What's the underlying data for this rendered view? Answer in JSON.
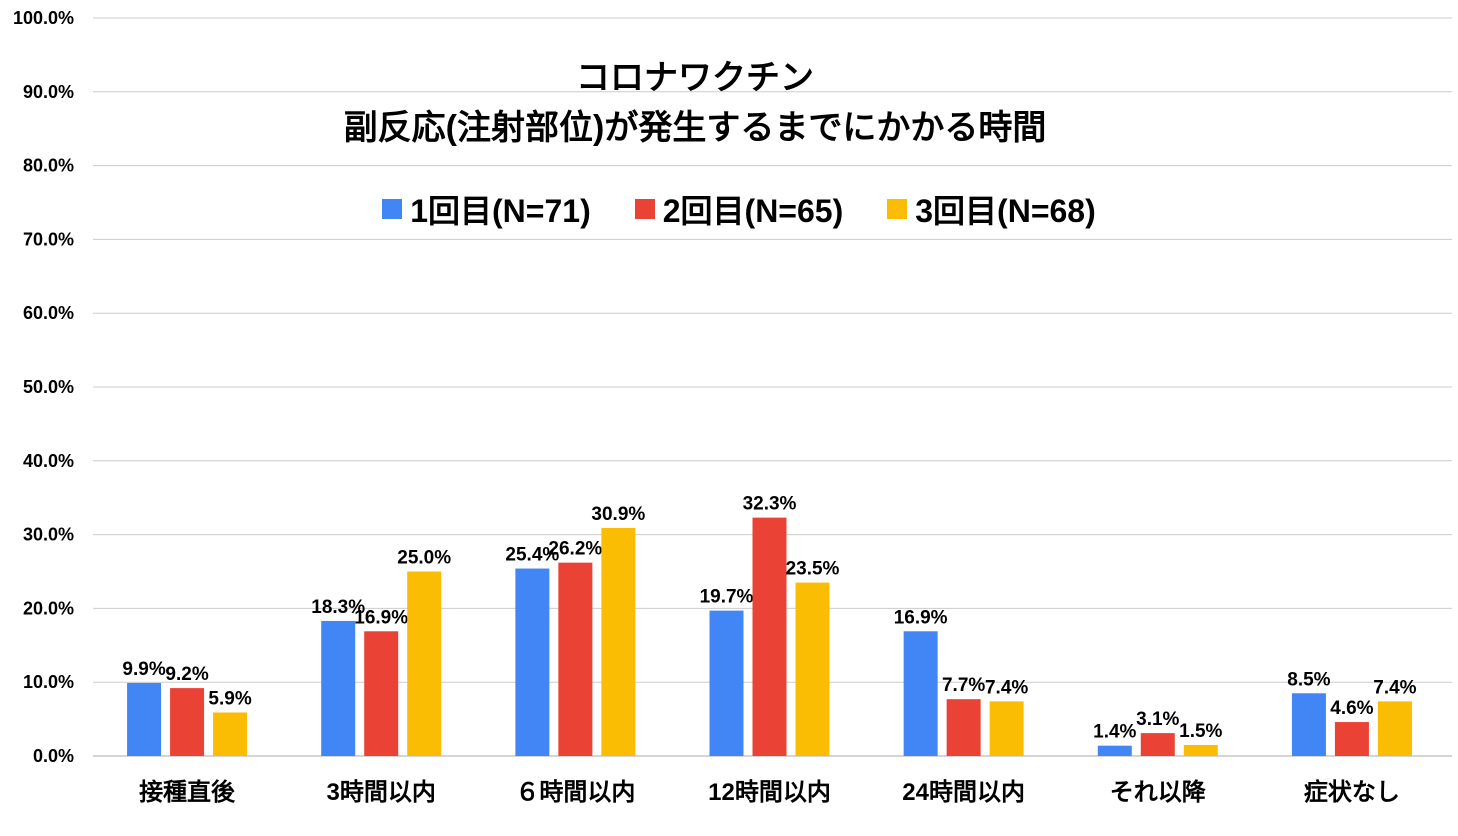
{
  "chart_data": {
    "type": "bar",
    "title": "コロナワクチン",
    "subtitle": "副反応(注射部位)が発生するまでにかかる時間",
    "categories": [
      "接種直後",
      "3時間以内",
      "６時間以内",
      "12時間以内",
      "24時間以内",
      "それ以降",
      "症状なし"
    ],
    "series": [
      {
        "name": "1回目(N=71)",
        "color": "#4285f4",
        "values": [
          9.9,
          18.3,
          25.4,
          19.7,
          16.9,
          1.4,
          8.5
        ],
        "labels": [
          "9.9%",
          "18.3%",
          "25.4%",
          "19.7%",
          "16.9%",
          "1.4%",
          "8.5%"
        ]
      },
      {
        "name": "2回目(N=65)",
        "color": "#ea4335",
        "values": [
          9.2,
          16.9,
          26.2,
          32.3,
          7.7,
          3.1,
          4.6
        ],
        "labels": [
          "9.2%",
          "16.9%",
          "26.2%",
          "32.3%",
          "7.7%",
          "3.1%",
          "4.6%"
        ]
      },
      {
        "name": "3回目(N=68)",
        "color": "#fbbc04",
        "values": [
          5.9,
          25.0,
          30.9,
          23.5,
          7.4,
          1.5,
          7.4
        ],
        "labels": [
          "5.9%",
          "25.0%",
          "30.9%",
          "23.5%",
          "7.4%",
          "1.5%",
          "7.4%"
        ]
      }
    ],
    "yticks": [
      "0.0%",
      "10.0%",
      "20.0%",
      "30.0%",
      "40.0%",
      "50.0%",
      "60.0%",
      "70.0%",
      "80.0%",
      "90.0%",
      "100.0%"
    ],
    "ylim": [
      0,
      100
    ],
    "grid": true,
    "legend": "top"
  }
}
